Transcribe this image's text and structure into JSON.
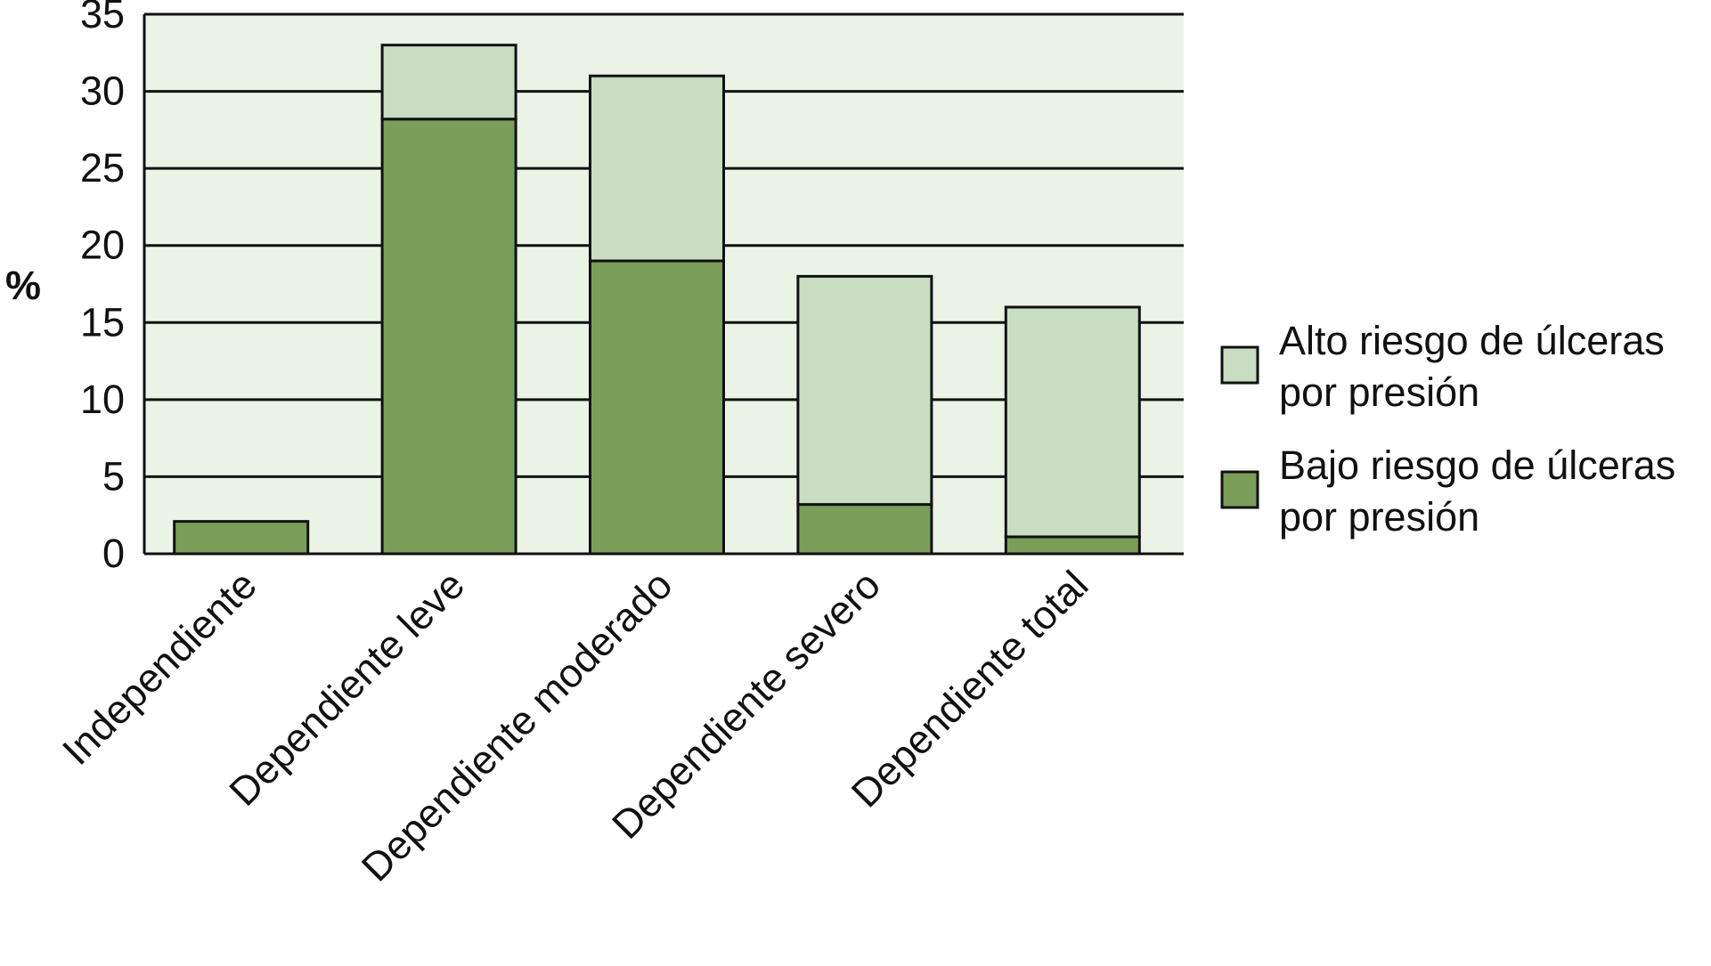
{
  "chart_data": {
    "type": "bar",
    "stacked": true,
    "title": "",
    "xlabel": "",
    "ylabel": "%",
    "ylim": [
      0,
      35
    ],
    "yticks": [
      0,
      5,
      10,
      15,
      20,
      25,
      30,
      35
    ],
    "grid": true,
    "legend_position": "right",
    "plot_background": "#ebf3e7",
    "categories": [
      "Independiente",
      "Dependiente leve",
      "Dependiente moderado",
      "Dependiente severo",
      "Dependiente total"
    ],
    "series": [
      {
        "name": "Bajo riesgo de úlceras por presión",
        "legend_lines": [
          "Bajo riesgo de úlceras",
          "por presión"
        ],
        "color": "#7a9e57",
        "values": [
          2.1,
          28.2,
          19.0,
          3.2,
          1.1
        ]
      },
      {
        "name": "Alto riesgo de úlceras por presión",
        "legend_lines": [
          "Alto riesgo de úlceras",
          "por presión"
        ],
        "color": "#c8ddc2",
        "values": [
          0,
          4.8,
          12.0,
          14.8,
          14.9
        ]
      }
    ]
  }
}
